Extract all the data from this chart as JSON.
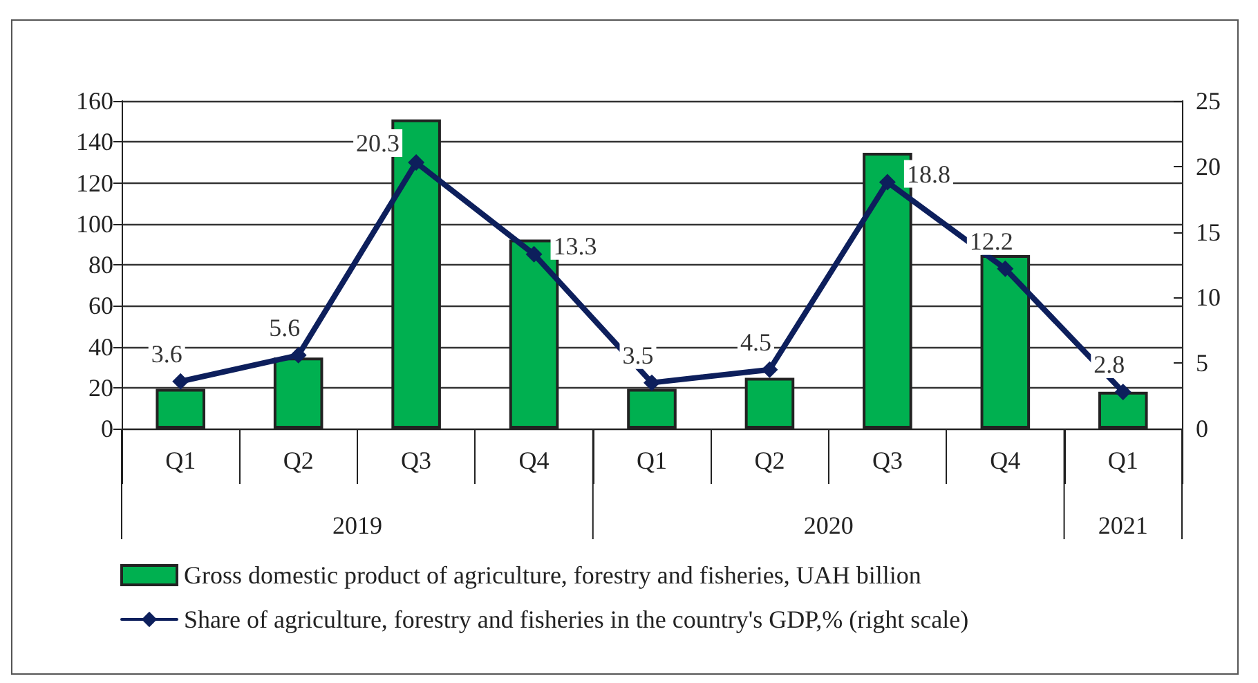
{
  "chart_data": {
    "type": "bar",
    "categories": [
      "Q1",
      "Q2",
      "Q3",
      "Q4",
      "Q1",
      "Q2",
      "Q3",
      "Q4",
      "Q1"
    ],
    "annotations": [
      "2019",
      "2020",
      "2021"
    ],
    "series": [
      {
        "name": "Gross domestic product of agriculture, forestry and fisheries, UAH billion",
        "color": "#00b050",
        "values": [
          19.4,
          34.7,
          151,
          92.3,
          19.4,
          24.8,
          134.7,
          84.7,
          18
        ]
      },
      {
        "name": "Share of agriculture, forestry and fisheries in the country's GDP,% (right scale)",
        "type": "line",
        "axis": "y2",
        "color": "#0d1f5c",
        "values": [
          3.6,
          5.6,
          20.3,
          13.3,
          3.5,
          4.5,
          18.8,
          12.2,
          2.8
        ],
        "value_labels": [
          "3.6",
          "5.6",
          "20.3",
          "13.3",
          "3.5",
          "4.5",
          "18.8",
          "12.2",
          "2.8"
        ]
      }
    ],
    "ylim": [
      0,
      160
    ],
    "yticks": [
      0,
      20,
      40,
      60,
      80,
      100,
      120,
      140,
      160
    ],
    "y2lim": [
      0,
      25
    ],
    "y2ticks": [
      0,
      5,
      10,
      15,
      20,
      25
    ],
    "grid": "y",
    "legend": "bottom",
    "marker": "diamond",
    "line_style": "solid"
  }
}
